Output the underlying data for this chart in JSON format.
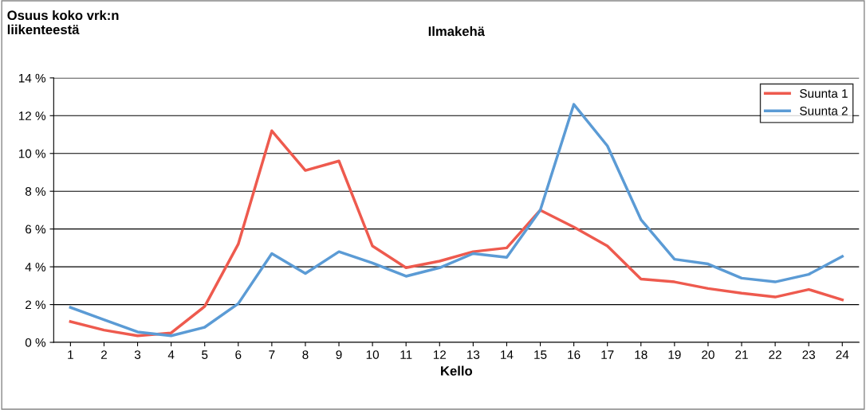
{
  "chart_data": {
    "type": "line",
    "title": "Ilmakehä",
    "xlabel": "Kello",
    "ylabel": "Osuus koko vrk:n\nliikenteestä",
    "categories": [
      "1",
      "2",
      "3",
      "4",
      "5",
      "6",
      "7",
      "8",
      "9",
      "10",
      "11",
      "12",
      "13",
      "14",
      "15",
      "16",
      "17",
      "18",
      "19",
      "20",
      "21",
      "22",
      "23",
      "24"
    ],
    "series": [
      {
        "name": "Suunta 1",
        "color": "#ee5a4e",
        "values": [
          1.1,
          0.65,
          0.35,
          0.5,
          1.9,
          5.2,
          11.2,
          9.1,
          9.6,
          5.1,
          3.95,
          4.3,
          4.8,
          5.0,
          7.0,
          6.1,
          5.1,
          3.35,
          3.2,
          2.85,
          2.6,
          2.4,
          2.8,
          2.25
        ]
      },
      {
        "name": "Suunta 2",
        "color": "#5b9bd5",
        "values": [
          1.85,
          1.2,
          0.55,
          0.35,
          0.8,
          2.05,
          4.7,
          3.65,
          4.8,
          4.2,
          3.5,
          3.95,
          4.7,
          4.5,
          7.0,
          12.6,
          10.4,
          6.5,
          4.4,
          4.15,
          3.4,
          3.2,
          3.6,
          4.55
        ]
      }
    ],
    "ylim": [
      0,
      14
    ],
    "yticks": [
      {
        "value": 0,
        "label": "0 %"
      },
      {
        "value": 2,
        "label": "2 %"
      },
      {
        "value": 4,
        "label": "4 %"
      },
      {
        "value": 6,
        "label": "6 %"
      },
      {
        "value": 8,
        "label": "8 %"
      },
      {
        "value": 10,
        "label": "10 %"
      },
      {
        "value": 12,
        "label": "12 %"
      },
      {
        "value": 14,
        "label": "14 %"
      }
    ],
    "grid": "y",
    "legend": "top right",
    "marker": "none",
    "line_style": "solid"
  }
}
